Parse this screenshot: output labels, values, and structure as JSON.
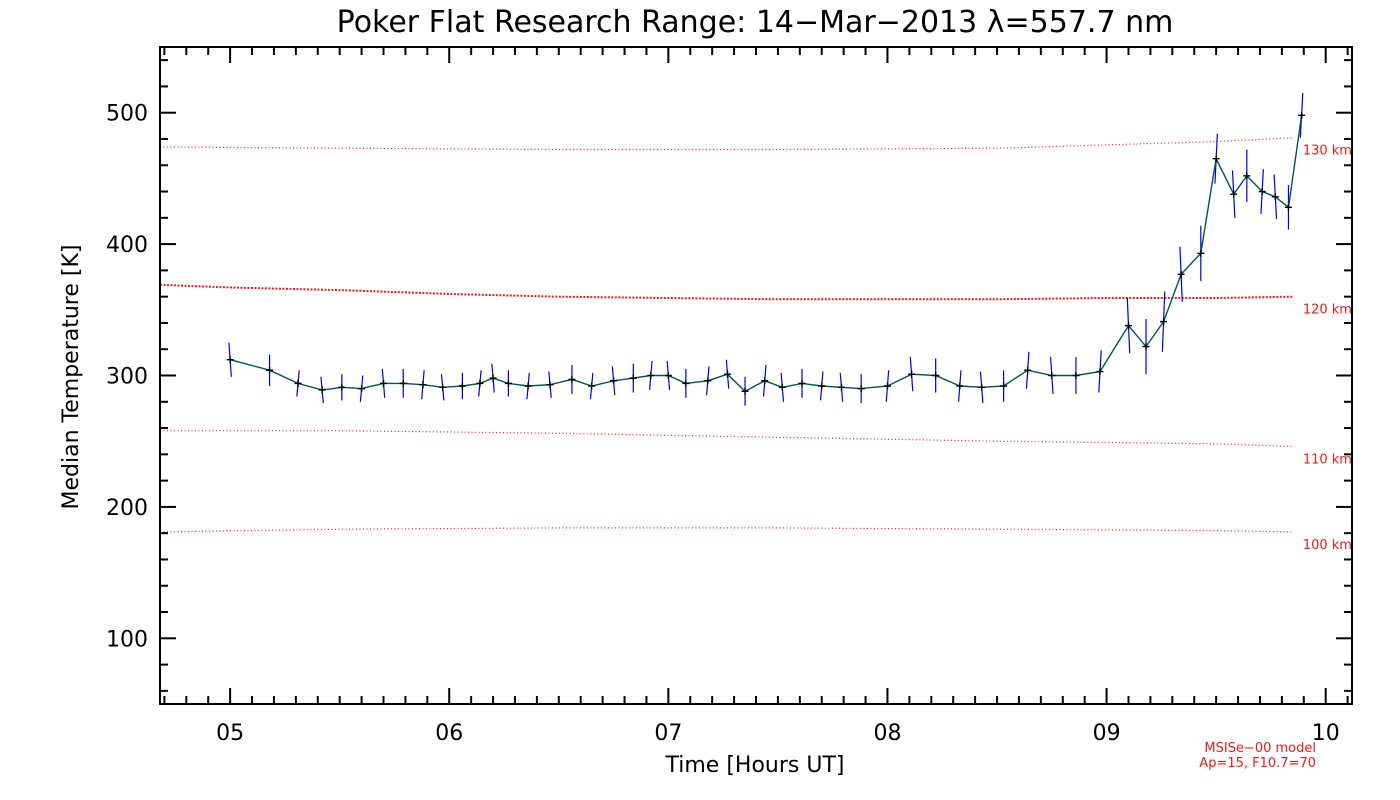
{
  "chart_data": {
    "type": "line",
    "title": "Poker Flat Research Range: 14−Mar−2013 λ=557.7 nm",
    "xlabel": "Time [Hours UT]",
    "ylabel": "Median Temperature [K]",
    "xlim": [
      4.68,
      10.12
    ],
    "ylim": [
      50,
      550
    ],
    "xticks": [
      5,
      6,
      7,
      8,
      9,
      10
    ],
    "xtick_labels": [
      "05",
      "06",
      "07",
      "08",
      "09",
      "10"
    ],
    "yticks": [
      100,
      200,
      300,
      400,
      500
    ],
    "ytick_labels": [
      "100",
      "200",
      "300",
      "400",
      "500"
    ],
    "x_minor_step": 0.1,
    "y_minor_step": 20,
    "colors": {
      "data": "#000000",
      "error": "#0000dd",
      "connector": "#005555",
      "model": "#e02020",
      "axis": "#000000"
    },
    "series": [
      {
        "name": "Median Temperature",
        "x": [
          5.0,
          5.18,
          5.31,
          5.42,
          5.51,
          5.6,
          5.7,
          5.79,
          5.88,
          5.97,
          6.06,
          6.14,
          6.2,
          6.27,
          6.36,
          6.46,
          6.56,
          6.65,
          6.75,
          6.84,
          6.92,
          7.0,
          7.08,
          7.18,
          7.27,
          7.35,
          7.44,
          7.52,
          7.61,
          7.7,
          7.79,
          7.88,
          8.0,
          8.11,
          8.22,
          8.33,
          8.43,
          8.53,
          8.64,
          8.75,
          8.86,
          8.97,
          9.1,
          9.18,
          9.26,
          9.34,
          9.43,
          9.5,
          9.58,
          9.64,
          9.71,
          9.77,
          9.83,
          9.89
        ],
        "values": [
          312,
          304,
          294,
          289,
          291,
          290,
          294,
          294,
          293,
          291,
          292,
          294,
          298,
          294,
          292,
          293,
          297,
          292,
          296,
          298,
          300,
          300,
          294,
          296,
          301,
          288,
          296,
          291,
          294,
          292,
          291,
          290,
          292,
          301,
          300,
          292,
          291,
          292,
          304,
          300,
          300,
          303,
          338,
          322,
          341,
          377,
          393,
          465,
          438,
          452,
          440,
          436,
          428,
          498
        ],
        "errors": [
          13,
          12,
          10,
          10,
          10,
          10,
          11,
          11,
          11,
          10,
          10,
          10,
          11,
          10,
          10,
          10,
          11,
          10,
          11,
          11,
          11,
          11,
          11,
          11,
          11,
          11,
          12,
          11,
          11,
          11,
          11,
          11,
          12,
          13,
          13,
          12,
          12,
          12,
          14,
          14,
          14,
          16,
          21,
          21,
          23,
          21,
          21,
          19,
          18,
          20,
          17,
          17,
          17,
          17
        ]
      }
    ],
    "model_curves": [
      {
        "label": "130 km",
        "x": [
          4.68,
          5.5,
          6.5,
          7.5,
          8.5,
          9.5,
          9.85
        ],
        "values": [
          474,
          473,
          472,
          472,
          473,
          478,
          481
        ],
        "dense": false
      },
      {
        "label": "120 km",
        "x": [
          4.68,
          5.0,
          5.5,
          6.0,
          6.5,
          7.0,
          7.5,
          8.0,
          8.5,
          9.0,
          9.5,
          9.85
        ],
        "values": [
          369,
          367,
          365,
          362,
          360,
          359,
          358,
          358,
          358,
          359,
          359,
          360
        ],
        "dense": true
      },
      {
        "label": "110 km",
        "x": [
          4.68,
          5.5,
          6.5,
          7.5,
          8.5,
          9.5,
          9.85
        ],
        "values": [
          258,
          258,
          256,
          253,
          250,
          248,
          246
        ],
        "dense": false
      },
      {
        "label": "100 km",
        "x": [
          4.68,
          5.5,
          6.5,
          7.5,
          8.5,
          9.5,
          9.85
        ],
        "values": [
          181,
          183,
          184,
          184,
          183,
          182,
          181
        ],
        "dense": false
      }
    ],
    "model_note": [
      "MSISe−00 model",
      "Ap=15, F10.7=70"
    ]
  }
}
